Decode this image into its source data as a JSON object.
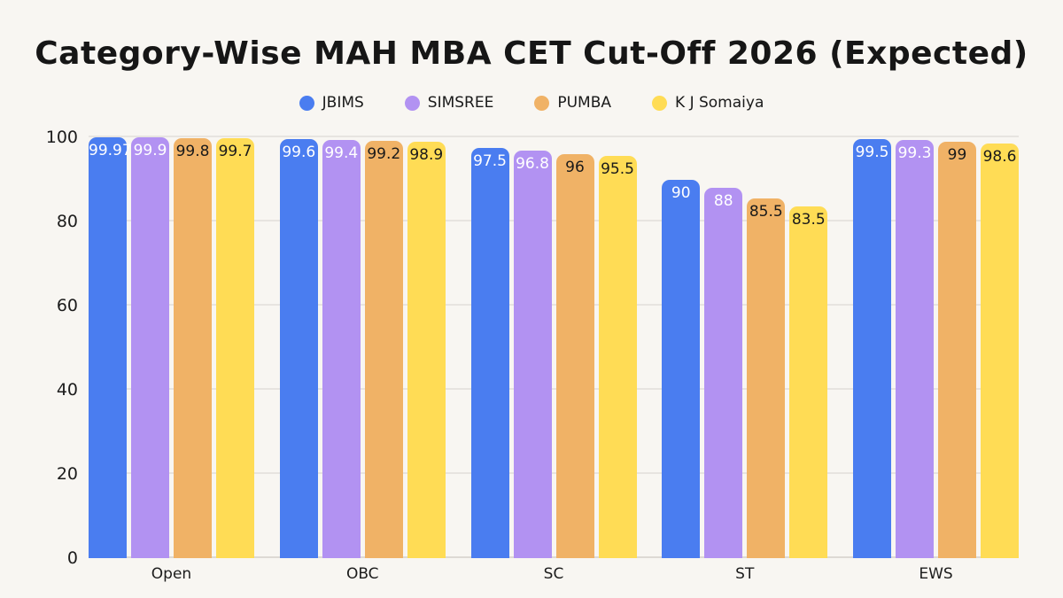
{
  "title": "Category-Wise MAH MBA CET Cut-Off 2026 (Expected)",
  "colors": {
    "background": "#f8f6f2",
    "text": "#1a1a1a",
    "grid": "#e7e4e0",
    "axis": "#ddd9d4"
  },
  "chart_data": {
    "type": "bar",
    "title": "Category-Wise MAH MBA CET Cut-Off 2026 (Expected)",
    "categories": [
      "Open",
      "OBC",
      "SC",
      "ST",
      "EWS"
    ],
    "series": [
      {
        "name": "JBIMS",
        "color": "#4a7df0",
        "label_color": "#ffffff",
        "values": [
          99.97,
          99.6,
          97.5,
          90,
          99.5
        ]
      },
      {
        "name": "SIMSREE",
        "color": "#b292f2",
        "label_color": "#ffffff",
        "values": [
          99.9,
          99.4,
          96.8,
          88,
          99.3
        ]
      },
      {
        "name": "PUMBA",
        "color": "#f0b266",
        "label_color": "#1a1a1a",
        "values": [
          99.8,
          99.2,
          96,
          85.5,
          99
        ]
      },
      {
        "name": "K J Somaiya",
        "color": "#ffdc55",
        "label_color": "#1a1a1a",
        "values": [
          99.7,
          98.9,
          95.5,
          83.5,
          98.6
        ]
      }
    ],
    "xlabel": "",
    "ylabel": "",
    "ylim": [
      0,
      100
    ],
    "yticks": [
      0,
      20,
      40,
      60,
      80,
      100
    ],
    "grid": true,
    "legend_position": "top"
  }
}
